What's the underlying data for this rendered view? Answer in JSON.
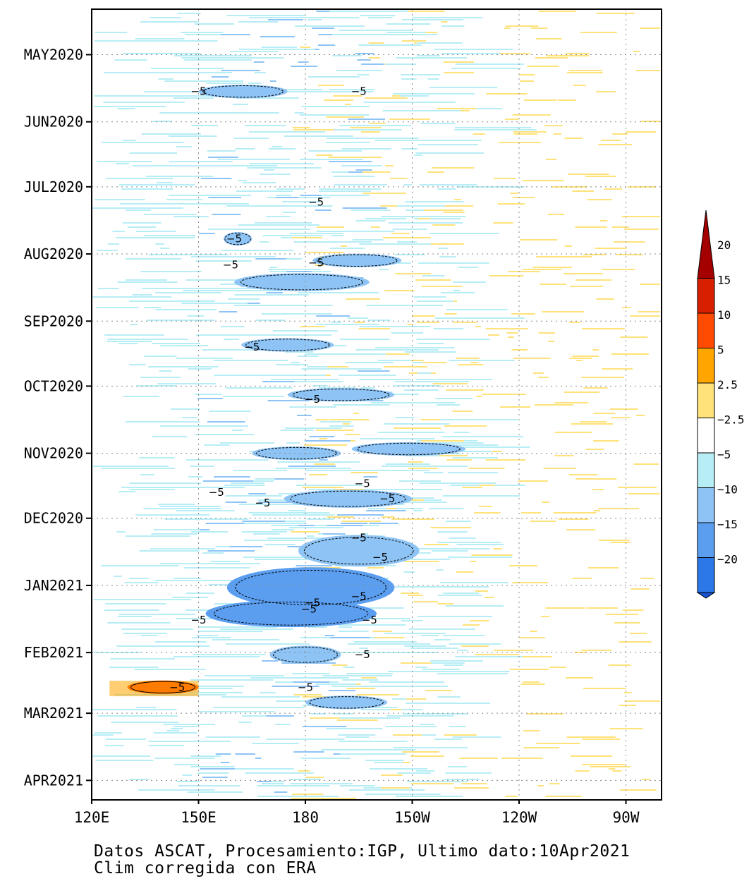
{
  "chart_data": {
    "type": "heatmap",
    "title": "",
    "xlabel": "",
    "ylabel": "",
    "x_tick_labels": [
      "120E",
      "150E",
      "180",
      "150W",
      "120W",
      "90W"
    ],
    "x_tick_lon": [
      120,
      150,
      180,
      210,
      240,
      270
    ],
    "xlim_lon": [
      120,
      280
    ],
    "y_tick_labels": [
      "MAY2020",
      "JUN2020",
      "JUL2020",
      "AUG2020",
      "SEP2020",
      "OCT2020",
      "NOV2020",
      "DEC2020",
      "JAN2021",
      "FEB2021",
      "MAR2021",
      "APR2021"
    ],
    "y_tick_dates": [
      "2020-05-01",
      "2020-06-01",
      "2020-07-01",
      "2020-08-01",
      "2020-09-01",
      "2020-10-01",
      "2020-11-01",
      "2020-12-01",
      "2021-01-01",
      "2021-02-01",
      "2021-03-01",
      "2021-04-01"
    ],
    "ylim_dates": [
      "2020-04-10",
      "2021-04-10"
    ],
    "y_direction": "time increases downward",
    "grid": true,
    "colorbar": {
      "placement": "right",
      "levels": [
        -20,
        -15,
        -10,
        -5,
        -2.5,
        2.5,
        5,
        10,
        15,
        20
      ],
      "tick_labels": [
        "20",
        "15",
        "10",
        "5",
        "2.5",
        "−2.5",
        "−5",
        "−10",
        "−15",
        "−20"
      ],
      "colors_high_to_low": [
        "#a50000",
        "#d82000",
        "#ff4b00",
        "#ffa500",
        "#ffe27a",
        "#ffffff",
        "#b7edf5",
        "#8ec4f5",
        "#5b9ef0",
        "#2c78e8",
        "#1551cf"
      ]
    },
    "contour_label": "−5",
    "contour_labels_lon": [
      [
        150,
        195
      ],
      [
        183
      ],
      [
        160
      ],
      [
        159
      ],
      [
        183
      ],
      [
        165
      ],
      [
        182
      ],
      [
        196
      ],
      [
        203
      ],
      [
        155
      ],
      [
        168
      ],
      [
        195
      ],
      [
        201
      ],
      [
        195
      ],
      [
        182
      ],
      [
        181
      ],
      [
        198
      ],
      [
        196
      ],
      [
        180
      ],
      [
        144
      ],
      [
        150
      ]
    ],
    "contour_labels_date": [
      "2020-05-18",
      "2020-07-08",
      "2020-07-25",
      "2020-08-06",
      "2020-08-05",
      "2020-09-13",
      "2020-10-07",
      "2020-11-15",
      "2020-11-22",
      "2020-11-19",
      "2020-11-24",
      "2020-12-10",
      "2020-12-19",
      "2021-01-06",
      "2021-01-09",
      "2021-01-12",
      "2021-01-17",
      "2021-02-02",
      "2021-02-17",
      "2021-02-17",
      "2021-01-17"
    ]
  },
  "caption": {
    "line1": "Datos ASCAT, Procesamiento:IGP, Ultimo dato:10Apr2021",
    "line2": "Clim corregida con ERA"
  }
}
